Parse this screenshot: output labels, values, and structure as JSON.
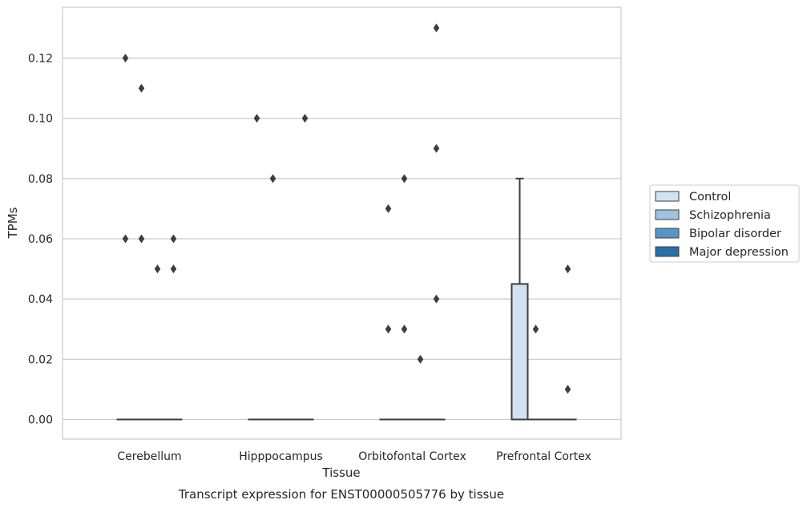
{
  "chart_data": {
    "type": "box",
    "title": "Transcript expression for ENST00000505776 by tissue",
    "xlabel": "Tissue",
    "ylabel": "TPMs",
    "categories": [
      "Cerebellum",
      "Hipppocampus",
      "Orbitofontal Cortex",
      "Prefrontal Cortex"
    ],
    "yticks": [
      "0.00",
      "0.02",
      "0.04",
      "0.06",
      "0.08",
      "0.10",
      "0.12"
    ],
    "ylim": [
      -0.0065,
      0.137
    ],
    "grid": "horizontal",
    "legend_position": "right",
    "series": [
      {
        "name": "Control",
        "color": "#d2e2f0",
        "boxes": [
          {
            "q1": 0,
            "median": 0,
            "q3": 0,
            "whisker_low": 0,
            "whisker_high": 0,
            "outliers": [
              0.06,
              0.12
            ]
          },
          {
            "q1": 0,
            "median": 0,
            "q3": 0,
            "whisker_low": 0,
            "whisker_high": 0,
            "outliers": [
              0.1
            ]
          },
          {
            "q1": 0,
            "median": 0,
            "q3": 0,
            "whisker_low": 0,
            "whisker_high": 0,
            "outliers": [
              0.03,
              0.07
            ]
          },
          {
            "q1": 0,
            "median": 0,
            "q3": 0.045,
            "whisker_low": 0,
            "whisker_high": 0.08,
            "outliers": []
          }
        ]
      },
      {
        "name": "Schizophrenia",
        "color": "#9dc3de",
        "boxes": [
          {
            "q1": 0,
            "median": 0,
            "q3": 0,
            "whisker_low": 0,
            "whisker_high": 0,
            "outliers": [
              0.06,
              0.11
            ]
          },
          {
            "q1": 0,
            "median": 0,
            "q3": 0,
            "whisker_low": 0,
            "whisker_high": 0,
            "outliers": [
              0.08
            ]
          },
          {
            "q1": 0,
            "median": 0,
            "q3": 0,
            "whisker_low": 0,
            "whisker_high": 0,
            "outliers": [
              0.03,
              0.08
            ]
          },
          {
            "q1": 0,
            "median": 0,
            "q3": 0,
            "whisker_low": 0,
            "whisker_high": 0,
            "outliers": [
              0.03
            ]
          }
        ]
      },
      {
        "name": "Bipolar disorder",
        "color": "#5696c6",
        "boxes": [
          {
            "q1": 0,
            "median": 0,
            "q3": 0,
            "whisker_low": 0,
            "whisker_high": 0,
            "outliers": [
              0.05
            ]
          },
          {
            "q1": 0,
            "median": 0,
            "q3": 0,
            "whisker_low": 0,
            "whisker_high": 0,
            "outliers": []
          },
          {
            "q1": 0,
            "median": 0,
            "q3": 0,
            "whisker_low": 0,
            "whisker_high": 0,
            "outliers": [
              0.02
            ]
          },
          {
            "q1": 0,
            "median": 0,
            "q3": 0,
            "whisker_low": 0,
            "whisker_high": 0,
            "outliers": []
          }
        ]
      },
      {
        "name": "Major depression",
        "color": "#2a6eab",
        "boxes": [
          {
            "q1": 0,
            "median": 0,
            "q3": 0,
            "whisker_low": 0,
            "whisker_high": 0,
            "outliers": [
              0.05,
              0.06
            ]
          },
          {
            "q1": 0,
            "median": 0,
            "q3": 0,
            "whisker_low": 0,
            "whisker_high": 0,
            "outliers": [
              0.1
            ]
          },
          {
            "q1": 0,
            "median": 0,
            "q3": 0,
            "whisker_low": 0,
            "whisker_high": 0,
            "outliers": [
              0.04,
              0.09,
              0.13
            ]
          },
          {
            "q1": 0,
            "median": 0,
            "q3": 0,
            "whisker_low": 0,
            "whisker_high": 0,
            "outliers": [
              0.01,
              0.05
            ]
          }
        ]
      }
    ]
  }
}
